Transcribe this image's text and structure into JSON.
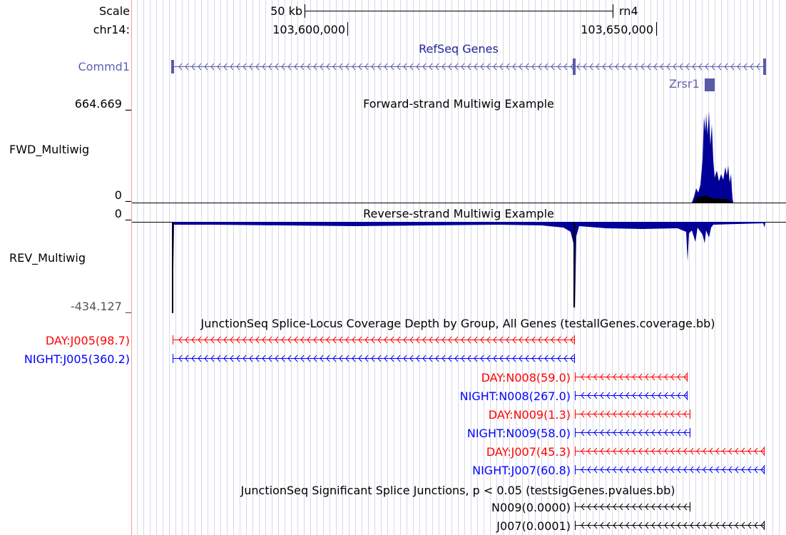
{
  "ruler": {
    "scale_label": "Scale",
    "scale_bar_label": "50 kb",
    "assembly": "rn4",
    "chrom_label": "chr14:",
    "positions": [
      "103,600,000",
      "103,650,000"
    ]
  },
  "tracks": {
    "refseq": {
      "title": "RefSeq Genes",
      "genes": [
        "Commd1",
        "Zrsr1"
      ]
    },
    "fwd": {
      "title": "Forward-strand Multiwig Example",
      "label": "FWD_Multiwig",
      "max_label": "664.669 _",
      "min_label": "0 _"
    },
    "rev": {
      "title": "Reverse-strand Multiwig Example",
      "label": "REV_Multiwig",
      "max_label": "0 _",
      "min_label": "-434.127 _"
    },
    "coverage": {
      "title": "JunctionSeq Splice-Locus Coverage Depth by Group, All Genes (testallGenes.coverage.bb)",
      "items": [
        {
          "label": "DAY:J005(98.7)",
          "group": "DAY"
        },
        {
          "label": "NIGHT:J005(360.2)",
          "group": "NIGHT"
        },
        {
          "label": "DAY:N008(59.0)",
          "group": "DAY"
        },
        {
          "label": "NIGHT:N008(267.0)",
          "group": "NIGHT"
        },
        {
          "label": "DAY:N009(1.3)",
          "group": "DAY"
        },
        {
          "label": "NIGHT:N009(58.0)",
          "group": "NIGHT"
        },
        {
          "label": "DAY:J007(45.3)",
          "group": "DAY"
        },
        {
          "label": "NIGHT:J007(60.8)",
          "group": "NIGHT"
        }
      ]
    },
    "sig": {
      "title": "JunctionSeq Significant Splice Junctions, p < 0.05 (testsigGenes.pvalues.bb)",
      "items": [
        "N009(0.0000)",
        "J007(0.0001)"
      ]
    }
  },
  "colors": {
    "day": "#ff0000",
    "night": "#0000ff",
    "gene": "#5a5aa8",
    "signal": "#000099",
    "grid": "#d8d8e8",
    "guide": "#ff9999"
  }
}
